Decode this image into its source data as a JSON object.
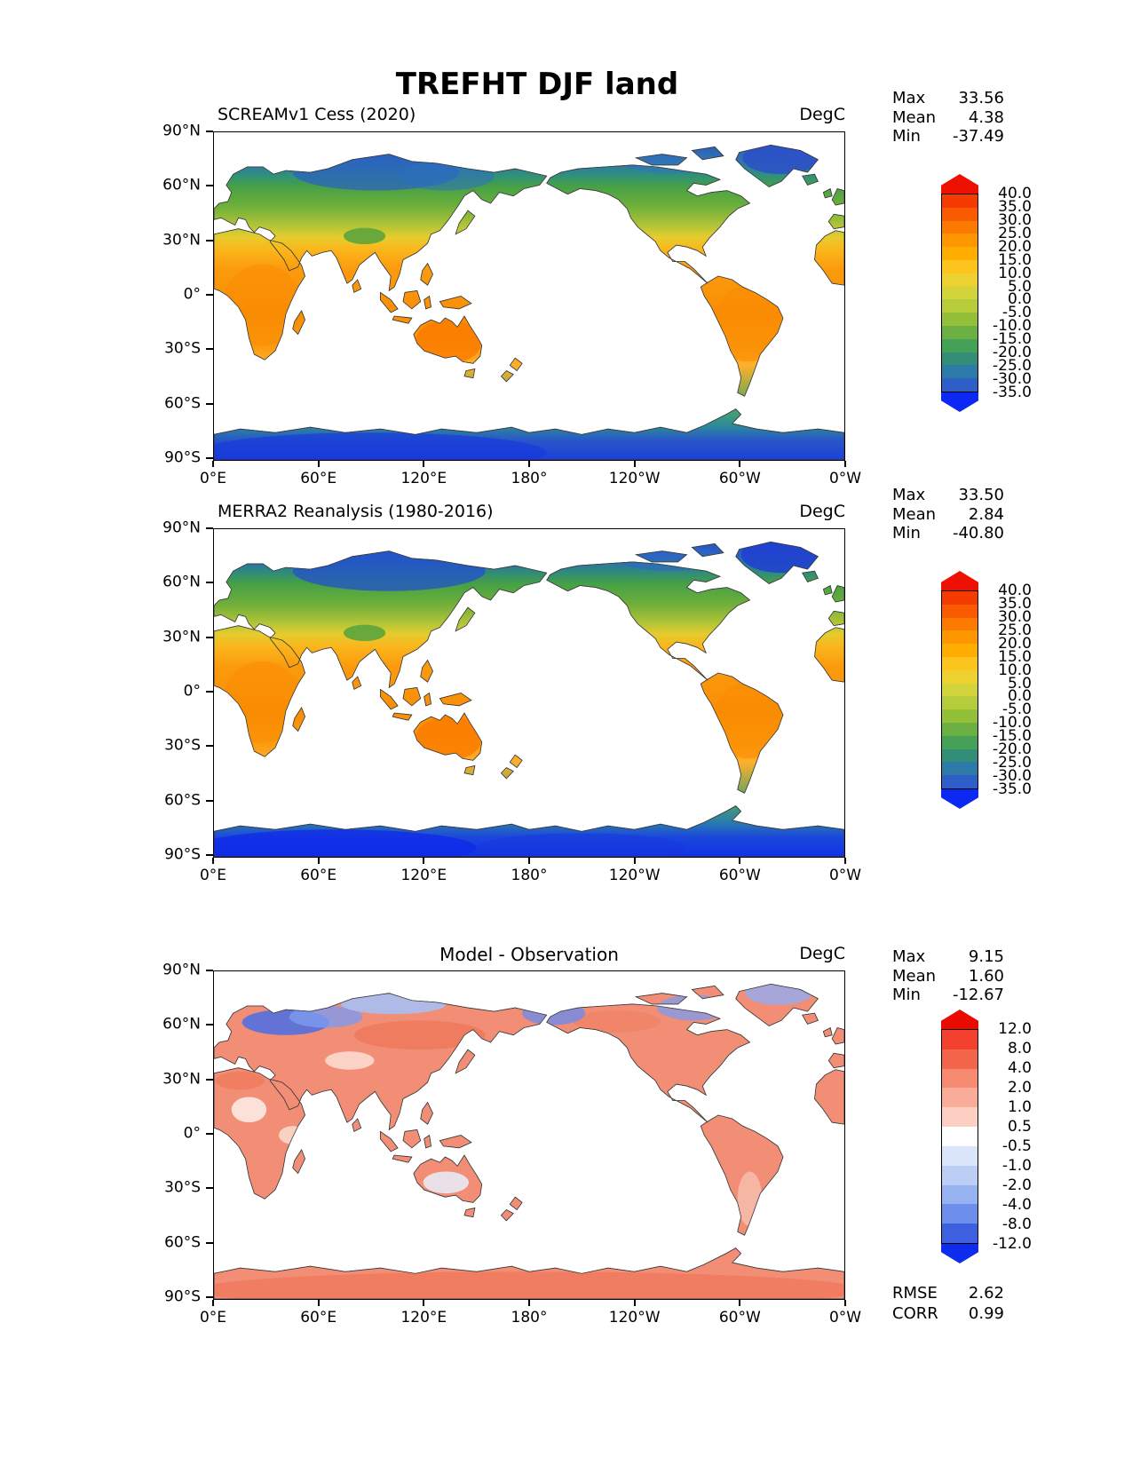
{
  "page": {
    "title": "TREFHT DJF land"
  },
  "panels": [
    {
      "subtitle": "SCREAMv1 Cess (2020)",
      "units": "DegC",
      "stats": [
        {
          "label": "Max",
          "value": "33.56"
        },
        {
          "label": "Mean",
          "value": "4.38"
        },
        {
          "label": "Min",
          "value": "-37.49"
        }
      ],
      "axes": {
        "y_ticks": [
          "90°N",
          "60°N",
          "30°N",
          "0°",
          "30°S",
          "60°S",
          "90°S"
        ],
        "x_ticks": [
          "0°E",
          "60°E",
          "120°E",
          "180°",
          "120°W",
          "60°W",
          "0°W"
        ]
      },
      "colorbar": {
        "ticks": [
          "40.0",
          "35.0",
          "30.0",
          "25.0",
          "20.0",
          "15.0",
          "10.0",
          "5.0",
          "0.0",
          "-5.0",
          "-10.0",
          "-15.0",
          "-20.0",
          "-25.0",
          "-30.0",
          "-35.0"
        ],
        "segments": [
          "#F63B00",
          "#FB5B00",
          "#FD7A00",
          "#FE9600",
          "#FFAD00",
          "#FCC41C",
          "#EDD130",
          "#D3D43B",
          "#B6CC3A",
          "#94C039",
          "#6CB044",
          "#45A158",
          "#338E78",
          "#2D79A8",
          "#2E5FC8"
        ],
        "cap_top": "#EE1000",
        "cap_bottom": "#0E28F4"
      }
    },
    {
      "subtitle": "MERRA2 Reanalysis (1980-2016)",
      "units": "DegC",
      "stats": [
        {
          "label": "Max",
          "value": "33.50"
        },
        {
          "label": "Mean",
          "value": "2.84"
        },
        {
          "label": "Min",
          "value": "-40.80"
        }
      ],
      "axes": {
        "y_ticks": [
          "90°N",
          "60°N",
          "30°N",
          "0°",
          "30°S",
          "60°S",
          "90°S"
        ],
        "x_ticks": [
          "0°E",
          "60°E",
          "120°E",
          "180°",
          "120°W",
          "60°W",
          "0°W"
        ]
      },
      "colorbar": {
        "ticks": [
          "40.0",
          "35.0",
          "30.0",
          "25.0",
          "20.0",
          "15.0",
          "10.0",
          "5.0",
          "0.0",
          "-5.0",
          "-10.0",
          "-15.0",
          "-20.0",
          "-25.0",
          "-30.0",
          "-35.0"
        ],
        "segments": [
          "#F63B00",
          "#FB5B00",
          "#FD7A00",
          "#FE9600",
          "#FFAD00",
          "#FCC41C",
          "#EDD130",
          "#D3D43B",
          "#B6CC3A",
          "#94C039",
          "#6CB044",
          "#45A158",
          "#338E78",
          "#2D79A8",
          "#2E5FC8"
        ],
        "cap_top": "#EE1000",
        "cap_bottom": "#0E28F4"
      }
    },
    {
      "subtitle": "Model - Observation",
      "units": "DegC",
      "stats": [
        {
          "label": "Max",
          "value": "9.15"
        },
        {
          "label": "Mean",
          "value": "1.60"
        },
        {
          "label": "Min",
          "value": "-12.67"
        }
      ],
      "axes": {
        "y_ticks": [
          "90°N",
          "60°N",
          "30°N",
          "0°",
          "30°S",
          "60°S",
          "90°S"
        ],
        "x_ticks": [
          "0°E",
          "60°E",
          "120°E",
          "180°",
          "120°W",
          "60°W",
          "0°W"
        ]
      },
      "colorbar": {
        "ticks": [
          "12.0",
          "8.0",
          "4.0",
          "2.0",
          "1.0",
          "0.5",
          "-0.5",
          "-1.0",
          "-2.0",
          "-4.0",
          "-8.0",
          "-12.0"
        ],
        "segments": [
          "#F4402E",
          "#F4664C",
          "#F68B72",
          "#F9AD98",
          "#FCCFC2",
          "#FFFFFF",
          "#DBE5F9",
          "#BCCEF5",
          "#97B2F0",
          "#6D8EEA",
          "#3D60E0"
        ],
        "cap_top": "#EA0B00",
        "cap_bottom": "#0F2BEE"
      },
      "metrics": [
        {
          "label": "RMSE",
          "value": "2.62"
        },
        {
          "label": "CORR",
          "value": "0.99"
        }
      ]
    }
  ],
  "chart_data": [
    {
      "type": "heatmap",
      "title": "SCREAMv1 Cess (2020)",
      "suptitle": "TREFHT DJF land",
      "units": "DegC",
      "projection": "equirectangular, 0°E left edge, 180° center",
      "x_tick_labels": [
        "0°E",
        "60°E",
        "120°E",
        "180°",
        "120°W",
        "60°W",
        "0°W"
      ],
      "y_tick_labels": [
        "90°N",
        "60°N",
        "30°N",
        "0°",
        "30°S",
        "60°S",
        "90°S"
      ],
      "stats": {
        "max": 33.56,
        "mean": 4.38,
        "min": -37.49
      },
      "colorbar_levels": [
        40,
        35,
        30,
        25,
        20,
        15,
        10,
        5,
        0,
        -5,
        -10,
        -15,
        -20,
        -25,
        -30,
        -35
      ],
      "colorbar_extend": "both",
      "palette": "rainbow red-orange-yellow-green-blue",
      "description": "DJF near-surface air temperature over land; tropics ~25-30C (orange), mid-latitudes green 0 to -10C, Siberia/Greenland blue -25 to -35C, Antarctica blue"
    },
    {
      "type": "heatmap",
      "title": "MERRA2 Reanalysis (1980-2016)",
      "units": "DegC",
      "projection": "equirectangular, 0°E left edge, 180° center",
      "x_tick_labels": [
        "0°E",
        "60°E",
        "120°E",
        "180°",
        "120°W",
        "60°W",
        "0°W"
      ],
      "y_tick_labels": [
        "90°N",
        "60°N",
        "30°N",
        "0°",
        "30°S",
        "60°S",
        "90°S"
      ],
      "stats": {
        "max": 33.5,
        "mean": 2.84,
        "min": -40.8
      },
      "colorbar_levels": [
        40,
        35,
        30,
        25,
        20,
        15,
        10,
        5,
        0,
        -5,
        -10,
        -15,
        -20,
        -25,
        -30,
        -35
      ],
      "colorbar_extend": "both",
      "palette": "rainbow red-orange-yellow-green-blue",
      "description": "Observed DJF temperature; same pattern as model but colder Siberia and Antarctica"
    },
    {
      "type": "heatmap",
      "title": "Model - Observation",
      "units": "DegC",
      "projection": "equirectangular, 0°E left edge, 180° center",
      "x_tick_labels": [
        "0°E",
        "60°E",
        "120°E",
        "180°",
        "120°W",
        "60°W",
        "0°W"
      ],
      "y_tick_labels": [
        "90°N",
        "60°N",
        "30°N",
        "0°",
        "30°S",
        "60°S",
        "90°S"
      ],
      "stats": {
        "max": 9.15,
        "mean": 1.6,
        "min": -12.67,
        "rmse": 2.62,
        "corr": 0.99
      },
      "colorbar_levels": [
        12,
        8,
        4,
        2,
        1,
        0.5,
        -0.5,
        -1,
        -2,
        -4,
        -8,
        -12
      ],
      "colorbar_extend": "both",
      "palette": "diverging red-white-blue",
      "description": "Mostly warm bias (light red) over land; cold bias (blue) over Scandinavia/NW Russia, north Siberia coast, Alaska, NE Canada and Greenland; warm bias over Antarctica"
    }
  ]
}
